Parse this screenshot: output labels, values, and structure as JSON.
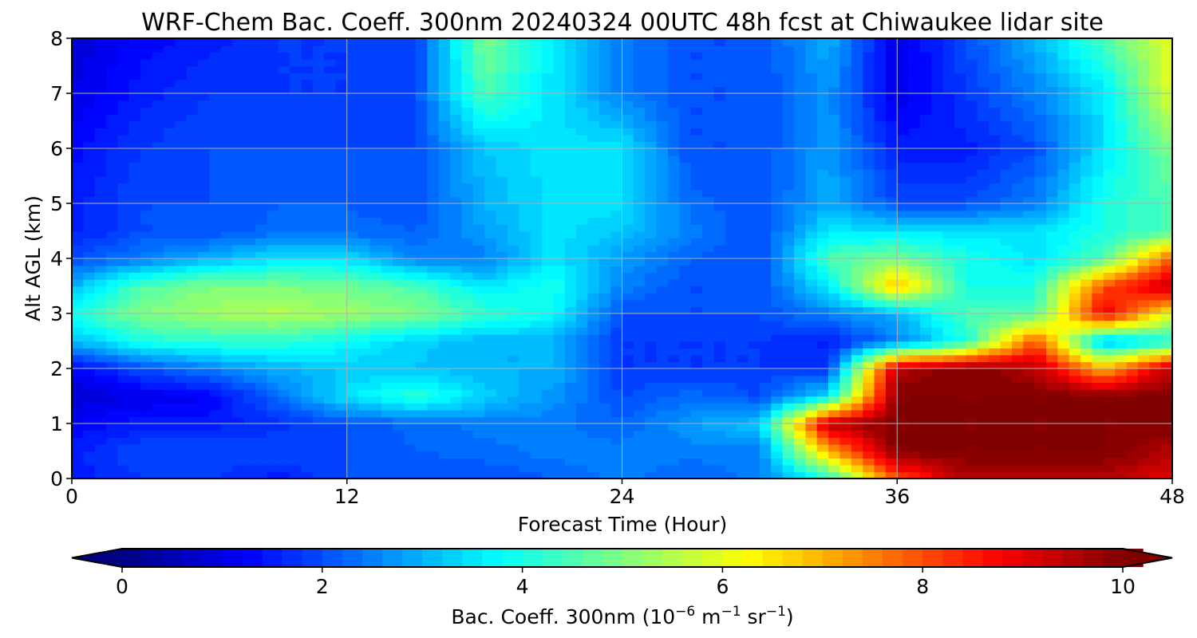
{
  "chart_data": {
    "type": "heatmap",
    "title": "WRF-Chem Bac. Coeff. 300nm  20240324 00UTC 48h fcst at Chiwaukee lidar site",
    "xlabel": "Forecast Time (Hour)",
    "ylabel": "Alt AGL (km)",
    "xlim": [
      0,
      48
    ],
    "ylim": [
      0,
      8
    ],
    "xticks": [
      "0",
      "12",
      "24",
      "36",
      "48"
    ],
    "yticks": [
      "0",
      "1",
      "2",
      "3",
      "4",
      "5",
      "6",
      "7",
      "8"
    ],
    "grid": true,
    "colorbar": {
      "label_main": "Bac. Coeff. 300nm  (10",
      "label_exp1": "−6",
      "label_mid": " m",
      "label_exp2": "−1",
      "label_mid2": " sr",
      "label_exp3": "−1",
      "label_end": ")",
      "range": [
        0,
        10
      ],
      "ticks": [
        "0",
        "2",
        "4",
        "6",
        "8",
        "10"
      ],
      "extend": "both",
      "colormap": "jet"
    },
    "x": [
      0,
      3,
      6,
      9,
      12,
      15,
      18,
      21,
      24,
      27,
      30,
      33,
      36,
      39,
      42,
      45,
      48
    ],
    "y": [
      0,
      0.5,
      1,
      1.5,
      2,
      2.5,
      3,
      3.5,
      4,
      4.5,
      5,
      6,
      7,
      8
    ],
    "z": [
      [
        1.5,
        1.8,
        1.8,
        1.5,
        2,
        2,
        2,
        2.2,
        2.5,
        2.2,
        2.5,
        4,
        8,
        9.5,
        9.5,
        9.5,
        9
      ],
      [
        1.5,
        2,
        2,
        2,
        2,
        2.2,
        2.3,
        2.5,
        2.5,
        2.5,
        2.5,
        7,
        10,
        10,
        10,
        10,
        9.5
      ],
      [
        1.2,
        1.5,
        1.5,
        1.7,
        2,
        2.3,
        2.5,
        2.5,
        2.2,
        2.8,
        3.2,
        9.5,
        10,
        10,
        10,
        10,
        10
      ],
      [
        0.8,
        1.0,
        1.2,
        2.3,
        3.5,
        4.2,
        3.3,
        2.7,
        2,
        2.3,
        2,
        3.5,
        10,
        10,
        10,
        10,
        10
      ],
      [
        1.2,
        2.0,
        2.5,
        3.0,
        3.2,
        3.2,
        3.0,
        3.0,
        1.8,
        1.8,
        1.8,
        1.8,
        9.5,
        10,
        9.5,
        7,
        9.5
      ],
      [
        3,
        4,
        4.2,
        4.2,
        3.8,
        3.3,
        3.0,
        3.0,
        1.8,
        1.8,
        1.8,
        1.5,
        2.5,
        4,
        8,
        3,
        4
      ],
      [
        4,
        5,
        5.3,
        5.5,
        5.3,
        5,
        4.3,
        3.8,
        2,
        2,
        2,
        2.5,
        3,
        4.5,
        4.5,
        9,
        6
      ],
      [
        3,
        4.5,
        5,
        5,
        4.8,
        4.5,
        3.5,
        4,
        2.5,
        2,
        2,
        3.5,
        7,
        4,
        4,
        8,
        9.5
      ],
      [
        2,
        2.5,
        3,
        3.5,
        3.5,
        2.5,
        2.5,
        3.5,
        2.8,
        2.2,
        2,
        4.5,
        5,
        4,
        3.5,
        4.5,
        8
      ],
      [
        1.5,
        2,
        2,
        2.3,
        2.3,
        2.2,
        2.8,
        3.5,
        3.2,
        2.5,
        2,
        3.5,
        3.5,
        3.5,
        3.5,
        4,
        4.5
      ],
      [
        1.5,
        2,
        2,
        2.2,
        2.2,
        2,
        3,
        3.5,
        3.5,
        2.3,
        2,
        3,
        2,
        2,
        2.5,
        4,
        4.5
      ],
      [
        1.3,
        1.8,
        2,
        2,
        2,
        2,
        3.2,
        3.5,
        3.5,
        2,
        2,
        2.8,
        1.5,
        1.5,
        2,
        3.5,
        5
      ],
      [
        1,
        1.5,
        1.8,
        1.8,
        1.8,
        2,
        4.5,
        3.5,
        2.5,
        2,
        2,
        2.7,
        1.0,
        1.8,
        2.5,
        3.5,
        6
      ],
      [
        0.8,
        1.3,
        1.5,
        1.8,
        1.8,
        1.8,
        5,
        3.5,
        2.5,
        2,
        2,
        3,
        1.0,
        2,
        3,
        4.5,
        6
      ]
    ]
  }
}
